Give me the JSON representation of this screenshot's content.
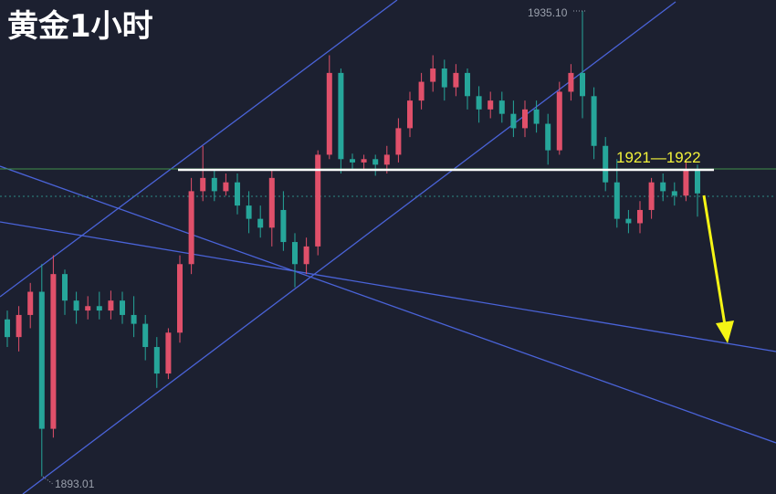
{
  "chart_data": {
    "type": "candlestick",
    "title": "黄金1小时",
    "high_label": "1935.10",
    "low_label": "1893.01",
    "annotations": [
      "1921—1922"
    ],
    "ylim": [
      1891.4,
      1936.1
    ],
    "categories": [
      null,
      null,
      null,
      null,
      null,
      null,
      null,
      null,
      null,
      null,
      null,
      null,
      null,
      null,
      null,
      null,
      null,
      null,
      null,
      null,
      null,
      null,
      null,
      null,
      null,
      null,
      null,
      null,
      null,
      null,
      null,
      null,
      null,
      null,
      null,
      null,
      null,
      null,
      null,
      null,
      null,
      null,
      null,
      null,
      null,
      null,
      null,
      null,
      null,
      null,
      null,
      null,
      null,
      null,
      null,
      null,
      null,
      null,
      null,
      null,
      null
    ],
    "up_color": "#e0506a",
    "down_color": "#26a69a",
    "series": [
      {
        "open": [
          1907.2,
          1905.6,
          1907.6,
          1909.7,
          1897.3,
          1911.3,
          1908.9,
          1908.0,
          1908.4,
          1908.0,
          1908.9,
          1907.6,
          1906.8,
          1904.7,
          1902.3,
          1906.0,
          1912.2,
          1918.8,
          1920.0,
          1918.8,
          1919.6,
          1917.5,
          1916.3,
          1915.5,
          1917.1,
          1914.2,
          1912.2,
          1913.8,
          1922.1,
          1929.5,
          1921.7,
          1921.4,
          1921.7,
          1921.2,
          1922.1,
          1924.5,
          1927.0,
          1928.7,
          1929.9,
          1928.2,
          1929.5,
          1927.4,
          1926.2,
          1927.0,
          1925.8,
          1924.5,
          1926.2,
          1924.9,
          1922.5,
          1927.8,
          1929.5,
          1927.4,
          1922.9,
          1919.6,
          1916.3,
          1915.9,
          1917.1,
          1919.6,
          1918.8,
          1918.4,
          1920.8
        ],
        "high": [
          1908.0,
          1908.4,
          1910.5,
          1912.2,
          1913.0,
          1911.7,
          1909.7,
          1909.3,
          1909.7,
          1909.8,
          1909.7,
          1909.3,
          1907.6,
          1905.6,
          1906.4,
          1913.0,
          1920.0,
          1922.9,
          1920.8,
          1920.4,
          1920.4,
          1918.8,
          1917.5,
          1920.8,
          1918.8,
          1915.0,
          1914.6,
          1922.5,
          1931.1,
          1929.9,
          1922.2,
          1922.1,
          1922.1,
          1922.9,
          1925.4,
          1927.8,
          1929.5,
          1931.1,
          1930.7,
          1930.3,
          1929.9,
          1928.3,
          1927.8,
          1927.8,
          1927.0,
          1927.0,
          1927.0,
          1925.8,
          1928.7,
          1930.3,
          1935.1,
          1928.2,
          1923.7,
          1921.7,
          1917.1,
          1917.9,
          1920.0,
          1920.4,
          1919.6,
          1921.7,
          1921.2
        ],
        "low": [
          1904.7,
          1904.3,
          1906.4,
          1893.0,
          1896.5,
          1907.6,
          1906.8,
          1907.2,
          1907.2,
          1907.2,
          1906.8,
          1905.6,
          1903.5,
          1901.0,
          1901.8,
          1905.1,
          1911.3,
          1917.9,
          1917.9,
          1918.4,
          1916.7,
          1915.0,
          1914.6,
          1913.8,
          1913.4,
          1910.1,
          1911.3,
          1913.0,
          1921.7,
          1920.4,
          1920.8,
          1920.8,
          1920.2,
          1920.4,
          1921.4,
          1923.7,
          1926.2,
          1927.8,
          1927.0,
          1927.4,
          1926.2,
          1925.0,
          1925.4,
          1925.0,
          1923.7,
          1923.7,
          1924.1,
          1921.2,
          1922.1,
          1927.0,
          1925.4,
          1921.7,
          1918.8,
          1915.5,
          1915.0,
          1915.0,
          1916.3,
          1917.9,
          1917.5,
          1917.9,
          1916.5
        ],
        "close": [
          1905.6,
          1907.6,
          1909.7,
          1897.3,
          1911.3,
          1908.9,
          1908.0,
          1908.4,
          1908.0,
          1908.9,
          1907.6,
          1906.8,
          1904.7,
          1902.3,
          1906.0,
          1912.2,
          1918.8,
          1920.0,
          1918.8,
          1919.6,
          1917.5,
          1916.3,
          1915.5,
          1920.0,
          1914.2,
          1912.2,
          1913.8,
          1922.1,
          1929.5,
          1921.7,
          1921.4,
          1921.7,
          1921.2,
          1922.1,
          1924.5,
          1927.0,
          1928.7,
          1929.9,
          1928.2,
          1929.5,
          1927.4,
          1926.2,
          1927.0,
          1925.8,
          1924.5,
          1926.2,
          1924.9,
          1922.5,
          1927.8,
          1929.5,
          1927.4,
          1922.9,
          1919.6,
          1916.3,
          1915.9,
          1917.1,
          1919.6,
          1918.8,
          1918.4,
          1920.8,
          1918.6
        ]
      }
    ]
  }
}
